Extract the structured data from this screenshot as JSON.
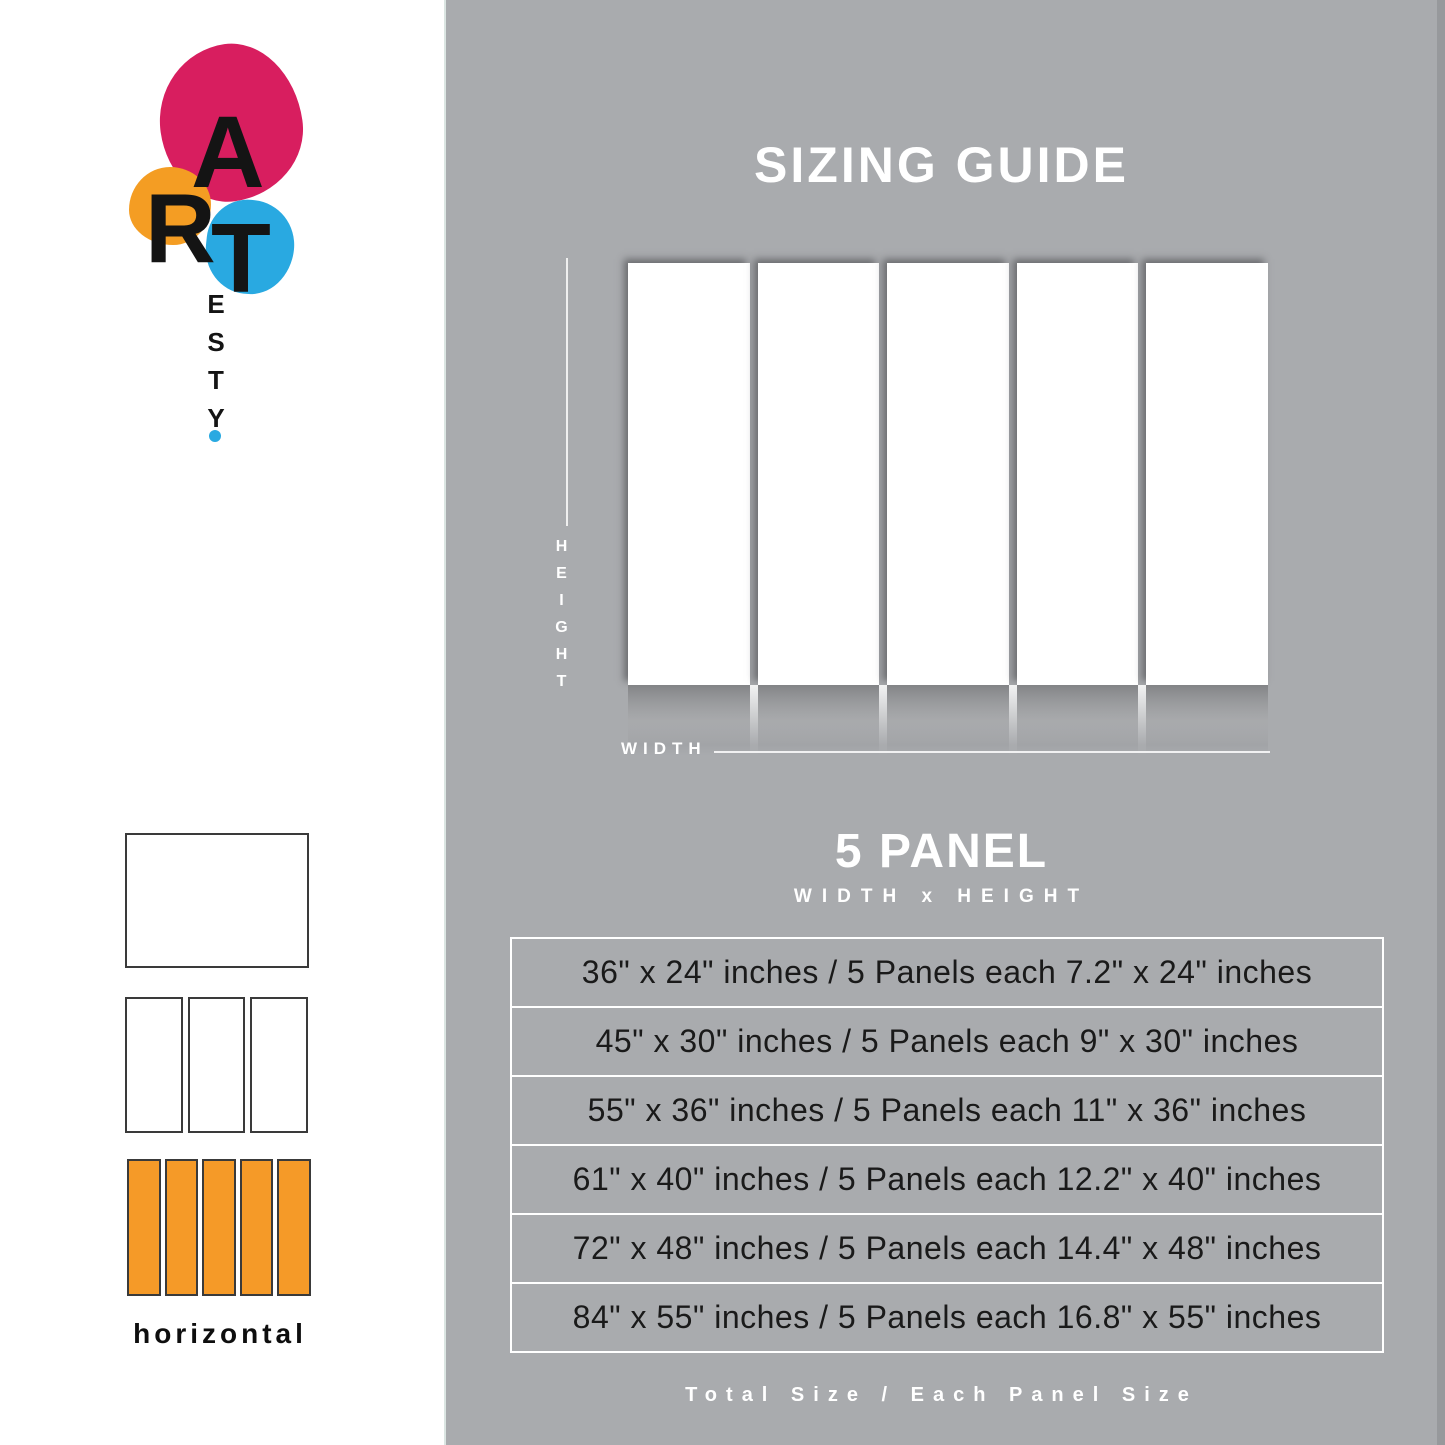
{
  "brand": {
    "letters": [
      "A",
      "R",
      "T"
    ],
    "vertical_letters": [
      "E",
      "S",
      "T",
      "Y"
    ],
    "colors": {
      "pink": "#d81e5f",
      "orange": "#f49d23",
      "blue": "#29a9e1"
    }
  },
  "palette": {
    "background_gray": "#a9abae",
    "thumb_orange": "#f59a28",
    "text_white": "#ffffff",
    "text_dark": "#1a1a1a"
  },
  "sidebar": {
    "orientation_label": "horizontal"
  },
  "guide": {
    "title": "SIZING GUIDE",
    "axis": {
      "height": "HEIGHT",
      "width": "WIDTH"
    },
    "heading": "5 PANEL",
    "subheading": "WIDTH x HEIGHT",
    "sizes": [
      "36\" x 24\" inches / 5 Panels each 7.2\" x 24\" inches",
      "45\" x 30\" inches / 5 Panels each 9\" x 30\" inches",
      "55\" x 36\" inches / 5 Panels each 11\" x 36\" inches",
      "61\" x 40\" inches / 5 Panels each 12.2\" x 40\" inches",
      "72\" x 48\" inches / 5 Panels each 14.4\" x 48\" inches",
      "84\" x 55\" inches / 5 Panels each 16.8\" x 55\" inches"
    ],
    "footer": "Total Size / Each Panel Size"
  }
}
